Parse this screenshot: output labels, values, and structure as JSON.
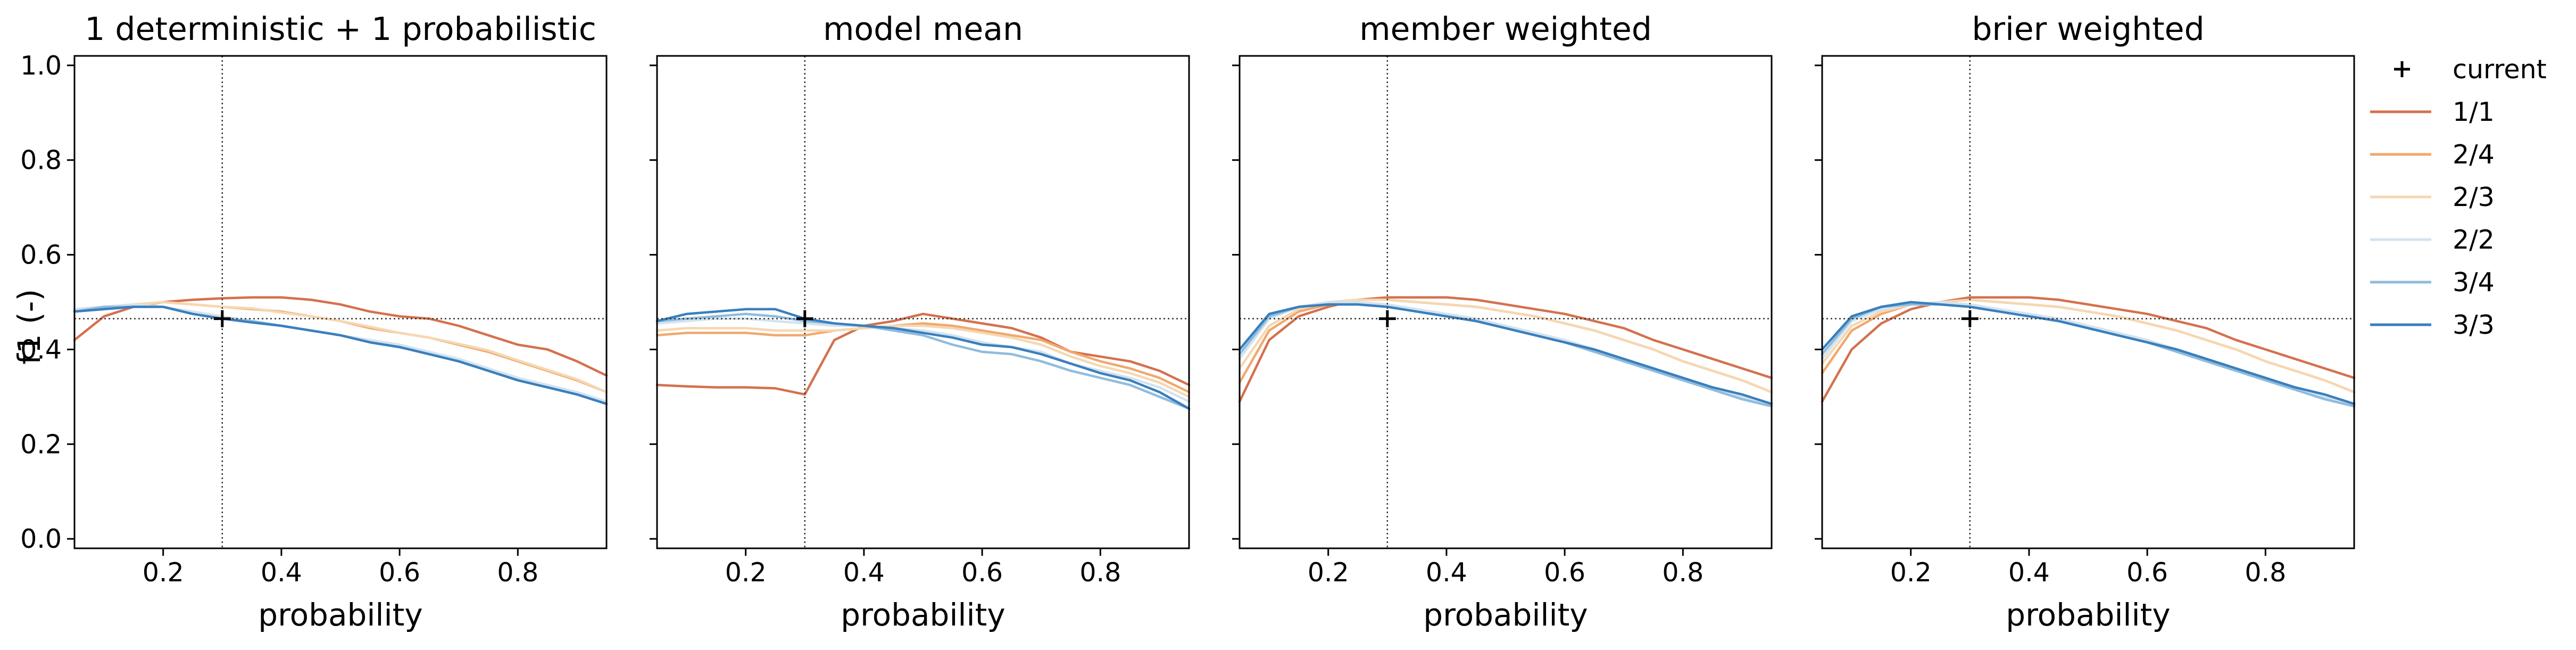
{
  "figure": {
    "ylabel": "f1 (-)",
    "xlabel": "probability",
    "reference": {
      "probability": 0.3,
      "f1": 0.465,
      "marker_label": "current"
    },
    "colors": {
      "1/1": "#d4714e",
      "2/4": "#f0a96f",
      "2/3": "#f6d7b2",
      "2/2": "#d3e3ef",
      "3/4": "#8fbcdd",
      "3/3": "#3a7fbd"
    }
  },
  "chart_data": [
    {
      "type": "line",
      "title": "1 deterministic + 1 probabilistic",
      "xlabel": "probability",
      "ylabel": "f1 (-)",
      "xlim": [
        0.05,
        0.95
      ],
      "ylim": [
        -0.02,
        1.02
      ],
      "xticks": [
        "0.2",
        "0.4",
        "0.6",
        "0.8"
      ],
      "yticks": [
        "0.0",
        "0.2",
        "0.4",
        "0.6",
        "0.8",
        "1.0"
      ],
      "legend_position": "right",
      "x": [
        0.05,
        0.1,
        0.15,
        0.2,
        0.25,
        0.3,
        0.35,
        0.4,
        0.45,
        0.5,
        0.55,
        0.6,
        0.65,
        0.7,
        0.75,
        0.8,
        0.85,
        0.9,
        0.95
      ],
      "series": [
        {
          "name": "1/1",
          "values": [
            0.42,
            0.47,
            0.49,
            0.5,
            0.505,
            0.508,
            0.51,
            0.51,
            0.505,
            0.495,
            0.48,
            0.47,
            0.465,
            0.45,
            0.43,
            0.41,
            0.4,
            0.375,
            0.345
          ]
        },
        {
          "name": "2/4",
          "values": [
            0.48,
            0.49,
            0.49,
            0.5,
            0.495,
            0.49,
            0.485,
            0.48,
            0.47,
            0.46,
            0.445,
            0.435,
            0.425,
            0.41,
            0.395,
            0.375,
            0.355,
            0.335,
            0.31
          ]
        },
        {
          "name": "2/3",
          "values": [
            0.485,
            0.49,
            0.495,
            0.5,
            0.495,
            0.49,
            0.487,
            0.478,
            0.47,
            0.46,
            0.448,
            0.435,
            0.425,
            0.412,
            0.398,
            0.377,
            0.357,
            0.337,
            0.31
          ]
        },
        {
          "name": "2/2",
          "values": [
            0.485,
            0.49,
            0.495,
            0.49,
            0.48,
            0.47,
            0.46,
            0.45,
            0.44,
            0.43,
            0.42,
            0.41,
            0.395,
            0.38,
            0.36,
            0.34,
            0.325,
            0.31,
            0.29
          ]
        },
        {
          "name": "3/4",
          "values": [
            0.48,
            0.49,
            0.49,
            0.49,
            0.475,
            0.465,
            0.46,
            0.45,
            0.44,
            0.43,
            0.415,
            0.405,
            0.39,
            0.375,
            0.355,
            0.335,
            0.32,
            0.305,
            0.285
          ]
        },
        {
          "name": "3/3",
          "values": [
            0.48,
            0.485,
            0.49,
            0.49,
            0.475,
            0.465,
            0.457,
            0.45,
            0.44,
            0.43,
            0.415,
            0.405,
            0.39,
            0.375,
            0.355,
            0.335,
            0.32,
            0.305,
            0.285
          ]
        }
      ]
    },
    {
      "type": "line",
      "title": "model mean",
      "xlabel": "probability",
      "ylabel": "",
      "xlim": [
        0.05,
        0.95
      ],
      "ylim": [
        -0.02,
        1.02
      ],
      "xticks": [
        "0.2",
        "0.4",
        "0.6",
        "0.8"
      ],
      "yticks": [],
      "legend_position": "",
      "x": [
        0.05,
        0.1,
        0.15,
        0.2,
        0.25,
        0.3,
        0.35,
        0.4,
        0.45,
        0.5,
        0.55,
        0.6,
        0.65,
        0.7,
        0.75,
        0.8,
        0.85,
        0.9,
        0.95
      ],
      "series": [
        {
          "name": "1/1",
          "values": [
            0.325,
            0.322,
            0.32,
            0.32,
            0.318,
            0.305,
            0.42,
            0.45,
            0.46,
            0.475,
            0.465,
            0.455,
            0.445,
            0.425,
            0.395,
            0.385,
            0.375,
            0.355,
            0.325
          ]
        },
        {
          "name": "2/4",
          "values": [
            0.43,
            0.435,
            0.435,
            0.435,
            0.43,
            0.43,
            0.44,
            0.445,
            0.45,
            0.455,
            0.45,
            0.44,
            0.43,
            0.42,
            0.395,
            0.375,
            0.36,
            0.34,
            0.31
          ]
        },
        {
          "name": "2/3",
          "values": [
            0.44,
            0.445,
            0.445,
            0.445,
            0.44,
            0.44,
            0.44,
            0.445,
            0.45,
            0.45,
            0.445,
            0.435,
            0.425,
            0.41,
            0.385,
            0.365,
            0.35,
            0.33,
            0.3
          ]
        },
        {
          "name": "2/2",
          "values": [
            0.455,
            0.46,
            0.465,
            0.465,
            0.46,
            0.455,
            0.45,
            0.45,
            0.445,
            0.44,
            0.43,
            0.415,
            0.405,
            0.395,
            0.37,
            0.355,
            0.34,
            0.32,
            0.29
          ]
        },
        {
          "name": "3/4",
          "values": [
            0.46,
            0.465,
            0.47,
            0.475,
            0.47,
            0.46,
            0.455,
            0.45,
            0.44,
            0.43,
            0.41,
            0.395,
            0.39,
            0.375,
            0.355,
            0.34,
            0.325,
            0.3,
            0.275
          ]
        },
        {
          "name": "3/3",
          "values": [
            0.46,
            0.475,
            0.48,
            0.485,
            0.485,
            0.465,
            0.455,
            0.45,
            0.445,
            0.435,
            0.425,
            0.41,
            0.405,
            0.39,
            0.37,
            0.35,
            0.335,
            0.31,
            0.275
          ]
        }
      ]
    },
    {
      "type": "line",
      "title": "member weighted",
      "xlabel": "probability",
      "ylabel": "",
      "xlim": [
        0.05,
        0.95
      ],
      "ylim": [
        -0.02,
        1.02
      ],
      "xticks": [
        "0.2",
        "0.4",
        "0.6",
        "0.8"
      ],
      "yticks": [],
      "legend_position": "",
      "x": [
        0.05,
        0.1,
        0.15,
        0.2,
        0.25,
        0.3,
        0.35,
        0.4,
        0.45,
        0.5,
        0.55,
        0.6,
        0.65,
        0.7,
        0.75,
        0.8,
        0.85,
        0.9,
        0.95
      ],
      "series": [
        {
          "name": "1/1",
          "values": [
            0.29,
            0.42,
            0.47,
            0.49,
            0.505,
            0.51,
            0.51,
            0.51,
            0.505,
            0.495,
            0.485,
            0.475,
            0.46,
            0.445,
            0.42,
            0.4,
            0.38,
            0.36,
            0.34
          ]
        },
        {
          "name": "2/4",
          "values": [
            0.33,
            0.44,
            0.48,
            0.495,
            0.505,
            0.505,
            0.5,
            0.495,
            0.49,
            0.48,
            0.47,
            0.455,
            0.44,
            0.42,
            0.4,
            0.375,
            0.355,
            0.335,
            0.31
          ]
        },
        {
          "name": "2/3",
          "values": [
            0.36,
            0.45,
            0.485,
            0.5,
            0.505,
            0.505,
            0.5,
            0.495,
            0.49,
            0.48,
            0.47,
            0.455,
            0.44,
            0.42,
            0.4,
            0.375,
            0.355,
            0.335,
            0.31
          ]
        },
        {
          "name": "2/2",
          "values": [
            0.38,
            0.465,
            0.49,
            0.5,
            0.5,
            0.495,
            0.485,
            0.475,
            0.465,
            0.45,
            0.435,
            0.42,
            0.4,
            0.38,
            0.36,
            0.34,
            0.32,
            0.3,
            0.285
          ]
        },
        {
          "name": "3/4",
          "values": [
            0.39,
            0.47,
            0.49,
            0.495,
            0.495,
            0.49,
            0.48,
            0.47,
            0.46,
            0.445,
            0.43,
            0.415,
            0.395,
            0.375,
            0.355,
            0.335,
            0.315,
            0.295,
            0.28
          ]
        },
        {
          "name": "3/3",
          "values": [
            0.4,
            0.475,
            0.49,
            0.495,
            0.495,
            0.49,
            0.48,
            0.47,
            0.46,
            0.445,
            0.43,
            0.415,
            0.4,
            0.38,
            0.36,
            0.34,
            0.32,
            0.305,
            0.285
          ]
        }
      ]
    },
    {
      "type": "line",
      "title": "brier weighted",
      "xlabel": "probability",
      "ylabel": "",
      "xlim": [
        0.05,
        0.95
      ],
      "ylim": [
        -0.02,
        1.02
      ],
      "xticks": [
        "0.2",
        "0.4",
        "0.6",
        "0.8"
      ],
      "yticks": [],
      "legend_position": "",
      "x": [
        0.05,
        0.1,
        0.15,
        0.2,
        0.25,
        0.3,
        0.35,
        0.4,
        0.45,
        0.5,
        0.55,
        0.6,
        0.65,
        0.7,
        0.75,
        0.8,
        0.85,
        0.9,
        0.95
      ],
      "series": [
        {
          "name": "1/1",
          "values": [
            0.29,
            0.4,
            0.455,
            0.485,
            0.5,
            0.51,
            0.51,
            0.51,
            0.505,
            0.495,
            0.485,
            0.475,
            0.46,
            0.445,
            0.42,
            0.4,
            0.38,
            0.36,
            0.34
          ]
        },
        {
          "name": "2/4",
          "values": [
            0.35,
            0.44,
            0.475,
            0.495,
            0.5,
            0.505,
            0.5,
            0.495,
            0.49,
            0.48,
            0.47,
            0.455,
            0.44,
            0.42,
            0.4,
            0.375,
            0.355,
            0.335,
            0.31
          ]
        },
        {
          "name": "2/3",
          "values": [
            0.37,
            0.45,
            0.48,
            0.495,
            0.5,
            0.505,
            0.5,
            0.495,
            0.49,
            0.48,
            0.47,
            0.455,
            0.44,
            0.42,
            0.4,
            0.375,
            0.355,
            0.335,
            0.31
          ]
        },
        {
          "name": "2/2",
          "values": [
            0.38,
            0.46,
            0.485,
            0.495,
            0.5,
            0.495,
            0.485,
            0.475,
            0.465,
            0.45,
            0.435,
            0.42,
            0.4,
            0.38,
            0.36,
            0.34,
            0.32,
            0.3,
            0.285
          ]
        },
        {
          "name": "3/4",
          "values": [
            0.39,
            0.465,
            0.49,
            0.495,
            0.495,
            0.49,
            0.48,
            0.47,
            0.46,
            0.445,
            0.43,
            0.415,
            0.395,
            0.375,
            0.355,
            0.335,
            0.315,
            0.295,
            0.28
          ]
        },
        {
          "name": "3/3",
          "values": [
            0.4,
            0.47,
            0.49,
            0.5,
            0.495,
            0.49,
            0.48,
            0.47,
            0.46,
            0.445,
            0.43,
            0.415,
            0.4,
            0.38,
            0.36,
            0.34,
            0.32,
            0.305,
            0.285
          ]
        }
      ]
    }
  ]
}
